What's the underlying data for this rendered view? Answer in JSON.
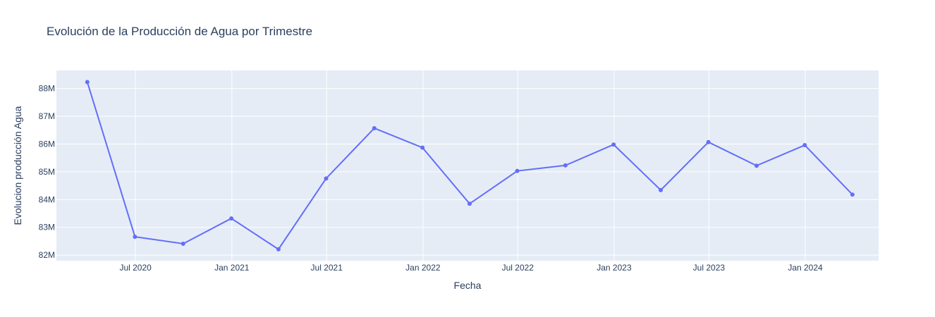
{
  "chart_data": {
    "type": "line",
    "title": "Evolución de la Producción de Agua por Trimestre",
    "xlabel": "Fecha",
    "ylabel": "Evolucion producción Agua",
    "x": [
      "2020-03-31",
      "2020-06-30",
      "2020-09-30",
      "2020-12-31",
      "2021-03-31",
      "2021-06-30",
      "2021-09-30",
      "2021-12-31",
      "2022-03-31",
      "2022-06-30",
      "2022-09-30",
      "2022-12-31",
      "2023-03-31",
      "2023-06-30",
      "2023-09-30",
      "2023-12-31",
      "2024-03-31"
    ],
    "series": [
      {
        "values": [
          88230000,
          82660000,
          82410000,
          83320000,
          82210000,
          84760000,
          86570000,
          85870000,
          83850000,
          85030000,
          85230000,
          85980000,
          84340000,
          86070000,
          85220000,
          85960000,
          84180000
        ]
      }
    ],
    "xlim": [
      "2020-02-01",
      "2024-05-20"
    ],
    "ylim": [
      81800000,
      88650000
    ],
    "x_ticks": [
      {
        "date": "2020-07-01",
        "label": "Jul 2020"
      },
      {
        "date": "2021-01-01",
        "label": "Jan 2021"
      },
      {
        "date": "2021-07-01",
        "label": "Jul 2021"
      },
      {
        "date": "2022-01-01",
        "label": "Jan 2022"
      },
      {
        "date": "2022-07-01",
        "label": "Jul 2022"
      },
      {
        "date": "2023-01-01",
        "label": "Jan 2023"
      },
      {
        "date": "2023-07-01",
        "label": "Jul 2023"
      },
      {
        "date": "2024-01-01",
        "label": "Jan 2024"
      }
    ],
    "y_ticks": [
      {
        "value": 82000000,
        "label": "82M"
      },
      {
        "value": 83000000,
        "label": "83M"
      },
      {
        "value": 84000000,
        "label": "84M"
      },
      {
        "value": 85000000,
        "label": "85M"
      },
      {
        "value": 86000000,
        "label": "86M"
      },
      {
        "value": 87000000,
        "label": "87M"
      },
      {
        "value": 88000000,
        "label": "88M"
      }
    ],
    "grid": true,
    "colors": {
      "line": "#636efa",
      "plot_bg": "#e5ecf6",
      "grid": "#ffffff",
      "text": "#2a3f5f"
    }
  }
}
